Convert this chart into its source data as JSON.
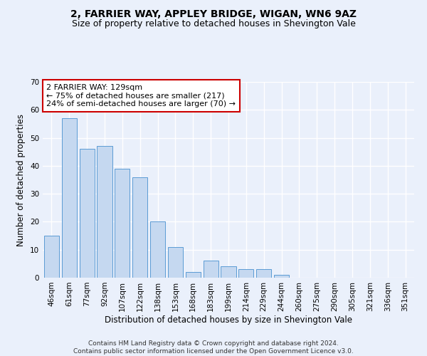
{
  "title1": "2, FARRIER WAY, APPLEY BRIDGE, WIGAN, WN6 9AZ",
  "title2": "Size of property relative to detached houses in Shevington Vale",
  "xlabel": "Distribution of detached houses by size in Shevington Vale",
  "ylabel": "Number of detached properties",
  "categories": [
    "46sqm",
    "61sqm",
    "77sqm",
    "92sqm",
    "107sqm",
    "122sqm",
    "138sqm",
    "153sqm",
    "168sqm",
    "183sqm",
    "199sqm",
    "214sqm",
    "229sqm",
    "244sqm",
    "260sqm",
    "275sqm",
    "290sqm",
    "305sqm",
    "321sqm",
    "336sqm",
    "351sqm"
  ],
  "values": [
    15,
    57,
    46,
    47,
    39,
    36,
    20,
    11,
    2,
    6,
    4,
    3,
    3,
    1,
    0,
    0,
    0,
    0,
    0,
    0,
    0
  ],
  "bar_color": "#c5d8f0",
  "bar_edge_color": "#5b9bd5",
  "ylim": [
    0,
    70
  ],
  "yticks": [
    0,
    10,
    20,
    30,
    40,
    50,
    60,
    70
  ],
  "annotation_text": "2 FARRIER WAY: 129sqm\n← 75% of detached houses are smaller (217)\n24% of semi-detached houses are larger (70) →",
  "annotation_box_color": "#ffffff",
  "annotation_box_edge_color": "#cc0000",
  "footer_text": "Contains HM Land Registry data © Crown copyright and database right 2024.\nContains public sector information licensed under the Open Government Licence v3.0.",
  "background_color": "#eaf0fb",
  "grid_color": "#ffffff",
  "title_fontsize": 10,
  "subtitle_fontsize": 9,
  "tick_fontsize": 7.5,
  "ylabel_fontsize": 8.5,
  "xlabel_fontsize": 8.5,
  "annotation_fontsize": 8,
  "footer_fontsize": 6.5
}
